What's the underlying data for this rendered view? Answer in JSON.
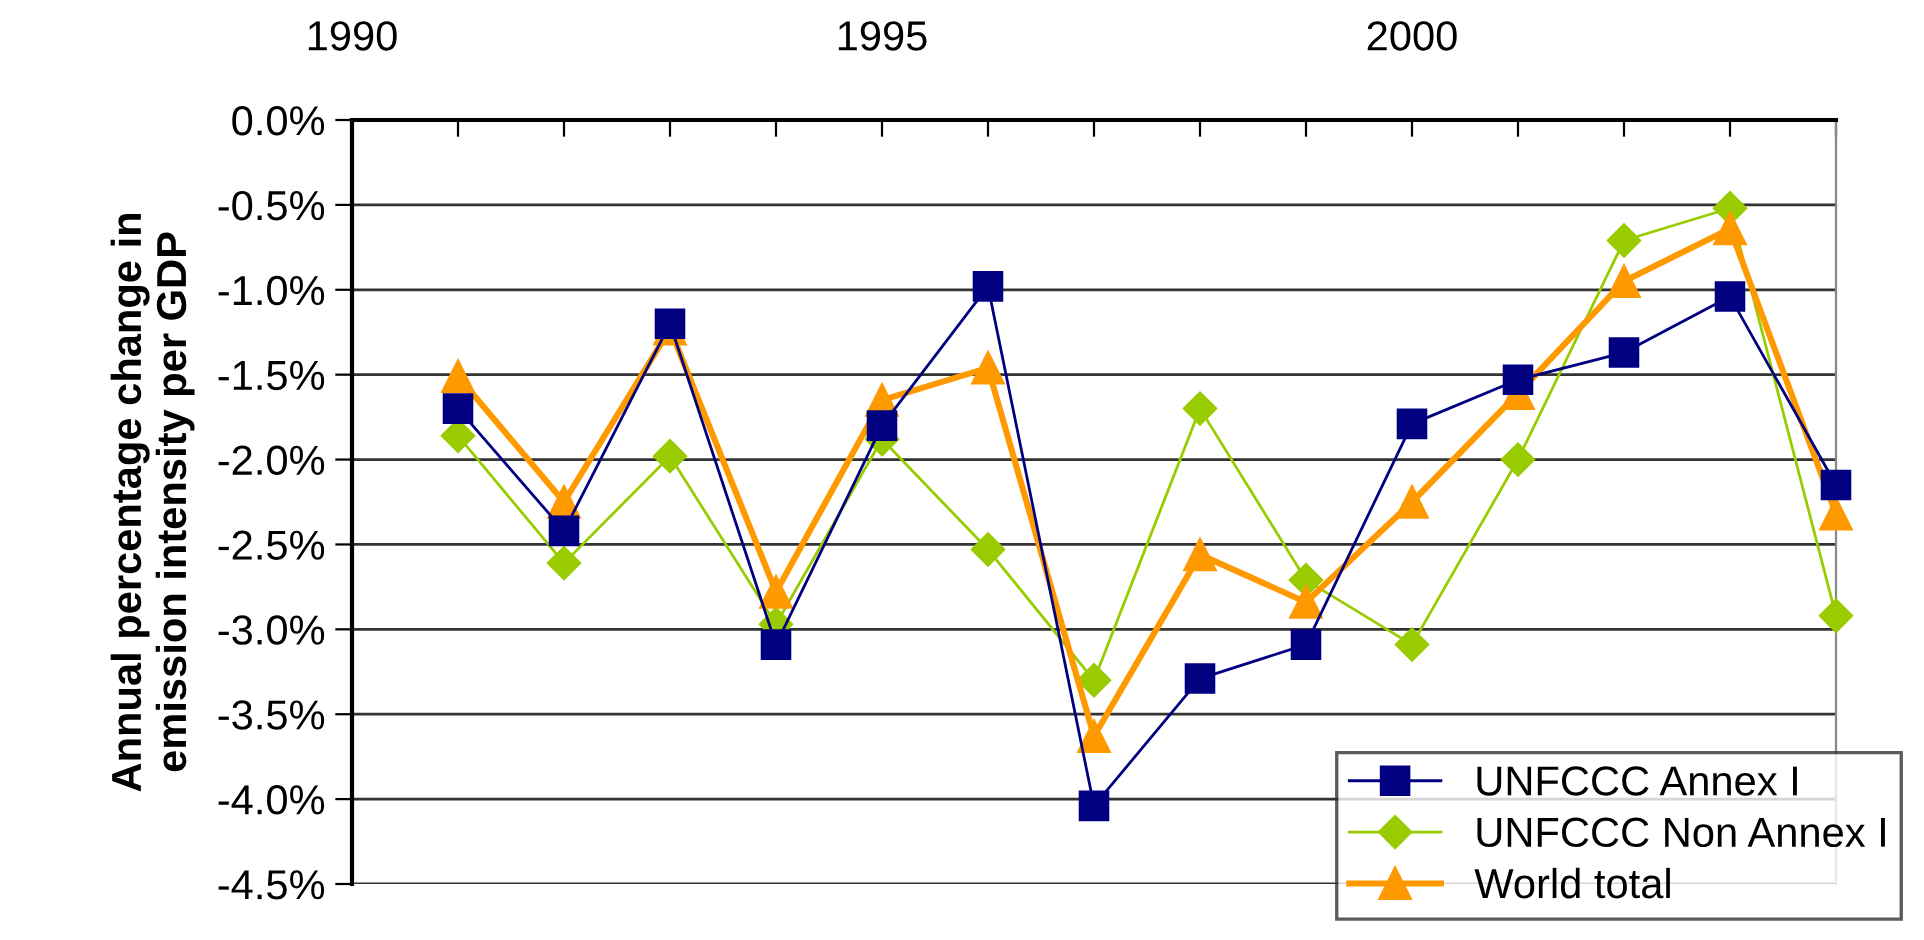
{
  "chart_data": {
    "type": "line",
    "ylabel": "Annual percentage change in\nemission intensity per GDP",
    "x": [
      1991,
      1992,
      1993,
      1994,
      1995,
      1996,
      1997,
      1998,
      1999,
      2000,
      2001,
      2002,
      2003,
      2004
    ],
    "series": [
      {
        "name": "UNFCCC Annex I",
        "color": "#000080",
        "marker": "square",
        "values": [
          -1.7,
          -2.42,
          -1.2,
          -3.09,
          -1.8,
          -0.98,
          -4.04,
          -3.29,
          -3.09,
          -1.79,
          -1.53,
          -1.37,
          -1.04,
          -2.15
        ]
      },
      {
        "name": "UNFCCC Non Annex I",
        "color": "#99cc00",
        "marker": "diamond",
        "values": [
          -1.86,
          -2.61,
          -1.98,
          -2.97,
          -1.88,
          -2.53,
          -3.3,
          -1.7,
          -2.71,
          -3.09,
          -2.0,
          -0.71,
          -0.52,
          -2.92
        ]
      },
      {
        "name": "World total",
        "color": "#ff9900",
        "marker": "triangle",
        "values": [
          -1.51,
          -2.25,
          -1.23,
          -2.78,
          -1.65,
          -1.46,
          -3.63,
          -2.56,
          -2.84,
          -2.25,
          -1.61,
          -0.95,
          -0.64,
          -2.32
        ]
      }
    ],
    "xlim": [
      1990,
      2004
    ],
    "xticks": [
      1990,
      {
        "value": 1991,
        "label": null
      },
      {
        "value": 1992,
        "label": null
      },
      {
        "value": 1993,
        "label": null
      },
      {
        "value": 1994,
        "label": null
      },
      1995,
      {
        "value": 1996,
        "label": null
      },
      {
        "value": 1997,
        "label": null
      },
      {
        "value": 1998,
        "label": null
      },
      {
        "value": 1999,
        "label": null
      },
      2000,
      {
        "value": 2001,
        "label": null
      },
      {
        "value": 2002,
        "label": null
      },
      {
        "value": 2003,
        "label": null
      },
      {
        "value": 2004,
        "label": null
      }
    ],
    "ylim": [
      -4.5,
      0
    ],
    "yticks": [
      {
        "value": 0,
        "label": "0.0%"
      },
      {
        "value": -0.5,
        "label": "-0.5%"
      },
      {
        "value": -1,
        "label": "-1.0%"
      },
      {
        "value": -1.5,
        "label": "-1.5%"
      },
      {
        "value": -2,
        "label": "-2.0%"
      },
      {
        "value": -2.5,
        "label": "-2.5%"
      },
      {
        "value": -3,
        "label": "-3.0%"
      },
      {
        "value": -3.5,
        "label": "-3.5%"
      },
      {
        "value": -4,
        "label": "-4.0%"
      },
      {
        "value": -4.5,
        "label": "-4.5%"
      }
    ],
    "grid": "y",
    "legend": "bottom right",
    "line_style": "solid"
  }
}
